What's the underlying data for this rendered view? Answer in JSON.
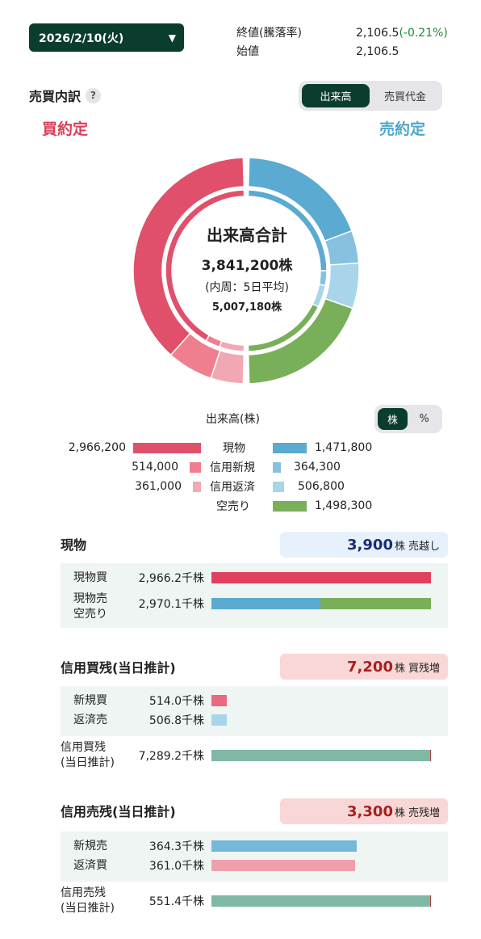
{
  "header": {
    "date": "2026/2/10(火)",
    "close_label": "終値(騰落率)",
    "close_value": "2,106.5",
    "close_change": "(-0.21%)",
    "open_label": "始値",
    "open_value": "2,106.5"
  },
  "breakdown": {
    "title": "売買内訳",
    "help": "?",
    "toggle": [
      "出来高",
      "売買代金"
    ],
    "buy_title": "買約定",
    "sell_title": "売約定",
    "center": {
      "title": "出来高合計",
      "total": "3,841,200株",
      "note": "(内周：5日平均)",
      "avg": "5,007,180株"
    }
  },
  "colors": {
    "buy_spot": "#e0506a",
    "buy_margin_new": "#ef7f8f",
    "buy_margin_repay": "#f2a8b2",
    "sell_spot": "#5aaad2",
    "sell_margin_new": "#86c2e0",
    "sell_margin_repay": "#a9d5ea",
    "short_sell": "#7aaf5a",
    "balance": "#7fb8a4"
  },
  "legend": {
    "title": "出来高(株)",
    "unit_toggle": [
      "株",
      "%"
    ],
    "rows": [
      {
        "buy": "2,966,200",
        "label": "現物",
        "sell": "1,471,800"
      },
      {
        "buy": "514,000",
        "label": "信用新規",
        "sell": "364,300"
      },
      {
        "buy": "361,000",
        "label": "信用返済",
        "sell": "506,800"
      },
      {
        "buy": "",
        "label": "空売り",
        "sell": "1,498,300"
      }
    ]
  },
  "chart_data": {
    "type": "pie",
    "outer_ring": {
      "buy": [
        {
          "name": "現物",
          "value": 2966200
        },
        {
          "name": "信用新規",
          "value": 514000
        },
        {
          "name": "信用返済",
          "value": 361000
        }
      ],
      "sell": [
        {
          "name": "現物",
          "value": 1471800
        },
        {
          "name": "信用新規",
          "value": 364300
        },
        {
          "name": "信用返済",
          "value": 506800
        },
        {
          "name": "空売り",
          "value": 1498300
        }
      ]
    },
    "inner_ring": {
      "buy": [
        0.84,
        0.06,
        0.1
      ],
      "sell": [
        0.5,
        0.06,
        0.09,
        0.35
      ]
    }
  },
  "spot": {
    "title": "現物",
    "badge_num": "3,900",
    "badge_unit": "株",
    "badge_text": "売越し",
    "rows": [
      {
        "name": "現物買",
        "value": "2,966.2千株"
      },
      {
        "name": "現物売\n空売り",
        "value": "2,970.1千株"
      }
    ],
    "bars": {
      "buy": 2966.2,
      "sell_spot": 1471.8,
      "sell_short": 1498.3,
      "max": 2970.1
    }
  },
  "margin_buy": {
    "title": "信用買残(当日推計)",
    "badge_num": "7,200",
    "badge_unit": "株",
    "badge_text": "買残増",
    "rows": [
      {
        "name": "新規買",
        "value": "514.0千株"
      },
      {
        "name": "返済売",
        "value": "506.8千株"
      },
      {
        "name": "信用買残\n(当日推計)",
        "value": "7,289.2千株"
      }
    ],
    "bars": [
      514.0,
      506.8,
      7289.2
    ]
  },
  "margin_sell": {
    "title": "信用売残(当日推計)",
    "badge_num": "3,300",
    "badge_unit": "株",
    "badge_text": "売残増",
    "rows": [
      {
        "name": "新規売",
        "value": "364.3千株"
      },
      {
        "name": "返済買",
        "value": "361.0千株"
      },
      {
        "name": "信用売残\n(当日推計)",
        "value": "551.4千株"
      }
    ],
    "bars": [
      364.3,
      361.0,
      551.4
    ]
  }
}
